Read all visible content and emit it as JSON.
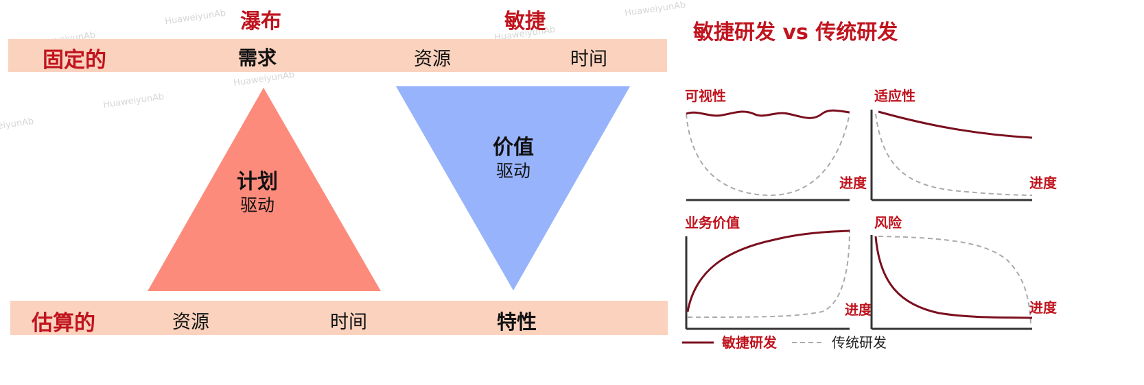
{
  "left": {
    "waterfall_title": "瀑布",
    "agile_title": "敏捷",
    "fixed_label": "固定的",
    "estimated_label": "估算的",
    "top_band": {
      "requirements": "需求",
      "resources": "资源",
      "time": "时间"
    },
    "bottom_band": {
      "resources": "资源",
      "time": "时间",
      "features": "特性"
    },
    "triangle_plan": {
      "line1": "计划",
      "line2": "驱动",
      "color": "#fd8b7c"
    },
    "triangle_value": {
      "line1": "价值",
      "line2": "驱动",
      "color": "#97b3fb"
    },
    "band_color": "#fbd2bd"
  },
  "right": {
    "title": "敏捷研发 vs 传统研发",
    "charts": [
      {
        "label": "可视性",
        "xlabel": "进度"
      },
      {
        "label": "适应性",
        "xlabel": "进度"
      },
      {
        "label": "业务价值",
        "xlabel": "进度"
      },
      {
        "label": "风险",
        "xlabel": "进度"
      }
    ],
    "legend": {
      "agile": "敏捷研发",
      "traditional": "传统研发"
    },
    "agile_color": "#7a0f1e",
    "traditional_color": "#aaaaaa"
  },
  "watermark": "HuaweiyunAb"
}
